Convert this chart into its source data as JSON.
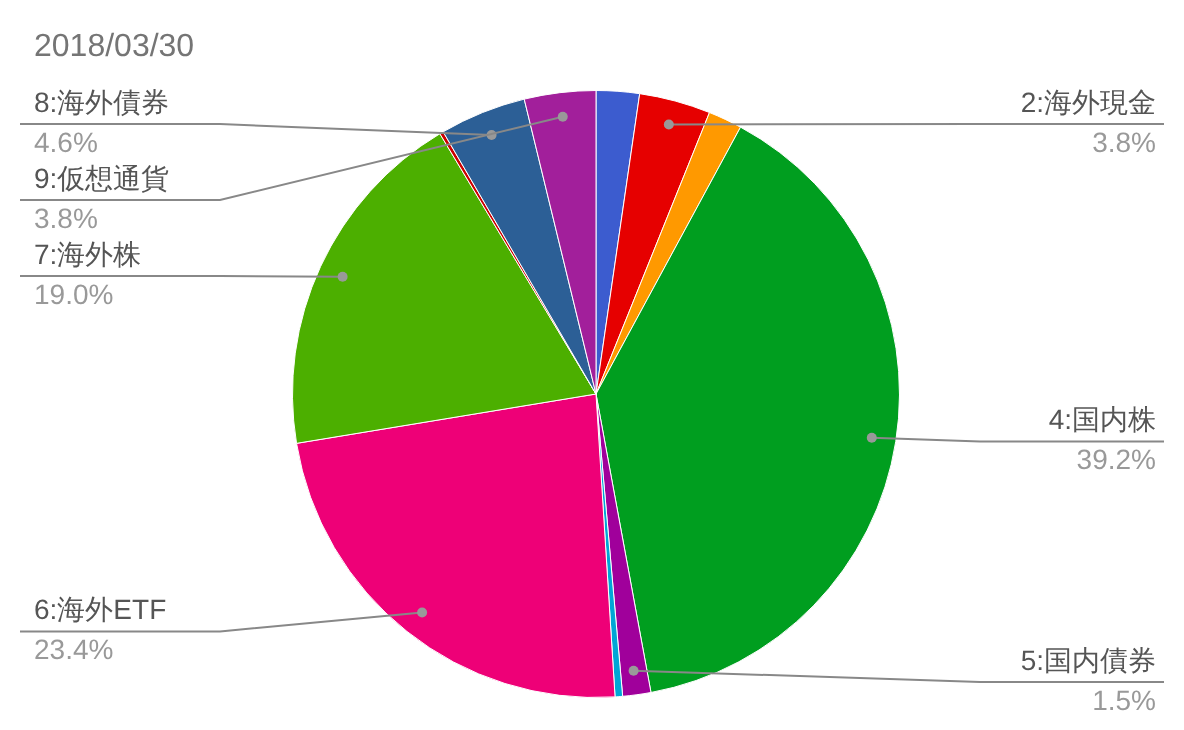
{
  "chart_data": {
    "type": "pie",
    "title": "2018/03/30",
    "categories": [
      null,
      "2:海外現金",
      null,
      "4:国内株",
      "5:国内債券",
      null,
      "6:海外ETF",
      "7:海外株",
      null,
      "8:海外債券",
      "9:仮想通貨"
    ],
    "values": [
      2.3,
      3.8,
      1.8,
      39.2,
      1.5,
      0.4,
      23.4,
      19.0,
      0.2,
      4.6,
      3.8
    ],
    "value_labels": [
      null,
      "3.8%",
      null,
      "39.2%",
      "1.5%",
      null,
      "23.4%",
      "19.0%",
      null,
      "4.6%",
      "3.8%"
    ],
    "colors": [
      "#3c5ccf",
      "#e60000",
      "#ff9900",
      "#009e1f",
      "#a0009b",
      "#00a6d6",
      "#ee0077",
      "#4caf00",
      "#cc0000",
      "#2c5f96",
      "#a21f9b"
    ],
    "legend": false
  }
}
